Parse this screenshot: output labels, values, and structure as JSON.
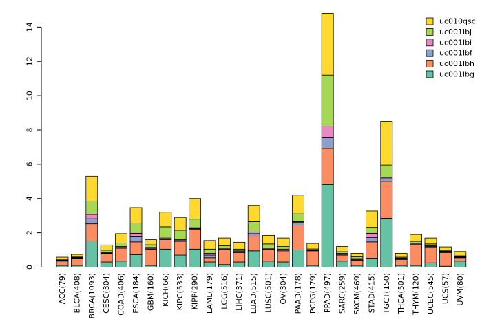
{
  "chart_data": {
    "type": "bar",
    "stacked": true,
    "title": "",
    "xlabel": "",
    "ylabel": "",
    "ylim": [
      0,
      15
    ],
    "yticks": [
      0,
      2,
      4,
      6,
      8,
      10,
      12,
      14
    ],
    "grid": false,
    "legend_position": "top-right",
    "categories": [
      "ACC(79)",
      "BLCA(408)",
      "BRCA(1093)",
      "CESC(304)",
      "COAD(406)",
      "ESCA(184)",
      "GBM(160)",
      "KICH(66)",
      "KIPC(533)",
      "KIPP(290)",
      "LAML(179)",
      "LGG(516)",
      "LIHC(371)",
      "LUAD(515)",
      "LUSC(501)",
      "OV(304)",
      "PAAD(178)",
      "PCPG(179)",
      "PPAD(497)",
      "SARC(259)",
      "SKCM(469)",
      "STAD(415)",
      "TGCT(150)",
      "THCA(501)",
      "THYM(120)",
      "UCEC(545)",
      "UCS(57)",
      "UVM(80)"
    ],
    "series": [
      {
        "name": "uc001lbg",
        "color": "#66c2a5",
        "values": [
          0.1,
          0.1,
          1.52,
          0.3,
          0.35,
          0.72,
          0.1,
          1.05,
          0.7,
          1.05,
          0.3,
          0.15,
          0.3,
          0.95,
          0.35,
          0.3,
          1.0,
          0.1,
          4.82,
          0.35,
          0.1,
          0.52,
          2.85,
          0.1,
          0.1,
          0.25,
          0.05,
          0.35
        ]
      },
      {
        "name": "uc001lbh",
        "color": "#fc8d62",
        "values": [
          0.25,
          0.4,
          1.0,
          0.48,
          0.75,
          0.75,
          0.95,
          0.55,
          0.8,
          1.15,
          0.25,
          0.85,
          0.55,
          0.85,
          0.65,
          0.65,
          1.45,
          0.85,
          2.1,
          0.35,
          0.3,
          0.95,
          2.15,
          0.35,
          1.2,
          0.9,
          0.8,
          0.2
        ]
      },
      {
        "name": "uc001lbf",
        "color": "#8da0cb",
        "values": [
          0.03,
          0.03,
          0.3,
          0.03,
          0.05,
          0.3,
          0.05,
          0.05,
          0.05,
          0.05,
          0.15,
          0.05,
          0.05,
          0.15,
          0.05,
          0.05,
          0.15,
          0.03,
          0.62,
          0.05,
          0.05,
          0.25,
          0.2,
          0.05,
          0.05,
          0.05,
          0.05,
          0.03
        ]
      },
      {
        "name": "uc001lbi",
        "color": "#e78ac3",
        "values": [
          0.03,
          0.03,
          0.25,
          0.03,
          0.05,
          0.2,
          0.05,
          0.05,
          0.05,
          0.05,
          0.1,
          0.05,
          0.05,
          0.1,
          0.05,
          0.05,
          0.05,
          0.03,
          0.68,
          0.05,
          0.05,
          0.25,
          0.05,
          0.03,
          0.05,
          0.05,
          0.03,
          0.03
        ]
      },
      {
        "name": "uc001lbj",
        "color": "#a6d854",
        "values": [
          0.05,
          0.03,
          0.78,
          0.15,
          0.2,
          0.6,
          0.15,
          0.65,
          0.55,
          0.5,
          0.25,
          0.15,
          0.1,
          0.6,
          0.25,
          0.15,
          0.45,
          0.05,
          2.98,
          0.1,
          0.1,
          0.35,
          0.7,
          0.05,
          0.1,
          0.1,
          0.05,
          0.05
        ]
      },
      {
        "name": "uc010qsc",
        "color": "#ffd92f",
        "values": [
          0.12,
          0.15,
          1.45,
          0.3,
          0.55,
          0.9,
          0.3,
          0.85,
          0.75,
          1.2,
          0.5,
          0.45,
          0.4,
          0.95,
          0.5,
          0.5,
          1.1,
          0.32,
          3.6,
          0.3,
          0.2,
          0.95,
          2.55,
          0.22,
          0.4,
          0.35,
          0.2,
          0.25
        ]
      }
    ]
  }
}
